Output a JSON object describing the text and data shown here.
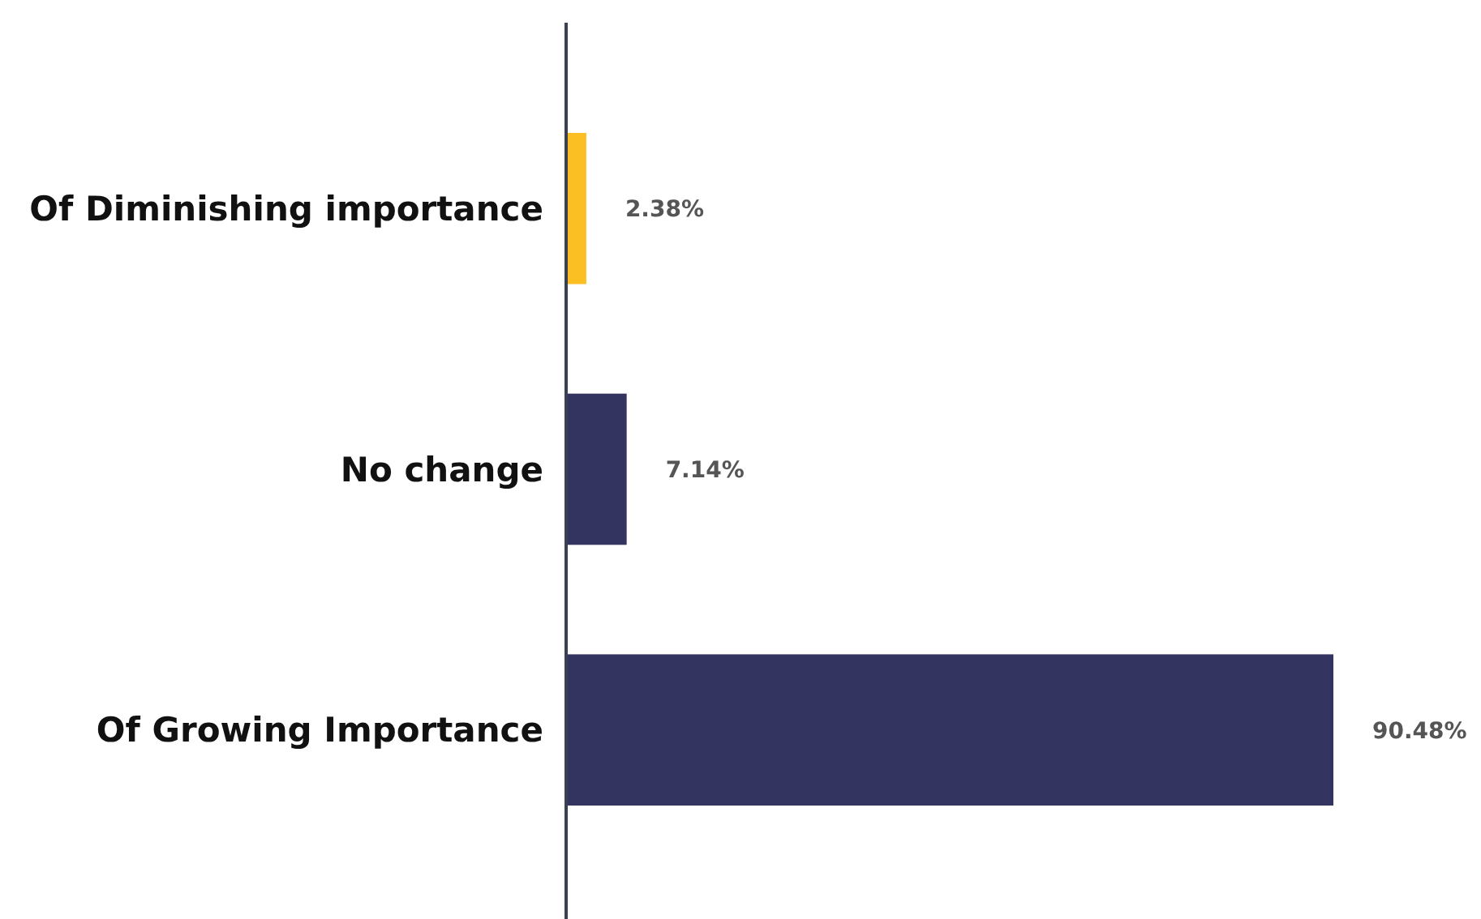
{
  "chart_data": {
    "type": "bar",
    "orientation": "horizontal",
    "categories": [
      "Of Diminishing importance",
      "No change",
      "Of Growing Importance"
    ],
    "values": [
      2.38,
      7.14,
      90.48
    ],
    "colors": [
      "#fbbf24",
      "#343461",
      "#343461"
    ],
    "value_labels": [
      "2.38%",
      "7.14%",
      "90.48%"
    ]
  }
}
